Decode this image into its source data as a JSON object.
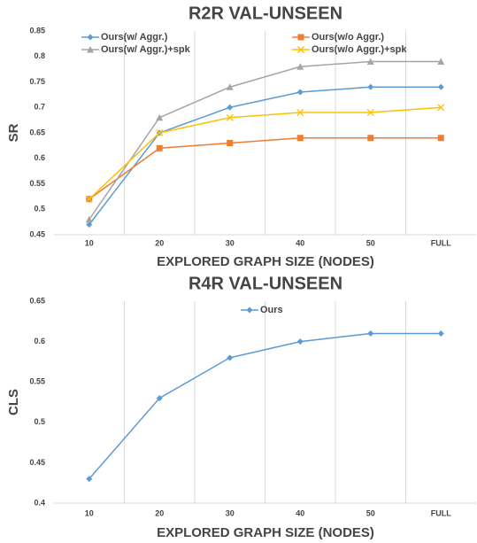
{
  "chart_data": [
    {
      "type": "line",
      "title": "R2R VAL-UNSEEN",
      "x_label": "EXPLORED GRAPH SIZE (NODES)",
      "y_label": "SR",
      "categories": [
        "10",
        "20",
        "30",
        "40",
        "50",
        "FULL"
      ],
      "series": [
        {
          "name": "Ours(w/ Aggr.)",
          "color": "#5b9bd5",
          "marker": "diamond",
          "values": [
            0.47,
            0.65,
            0.7,
            0.73,
            0.74,
            0.74
          ]
        },
        {
          "name": "Ours(w/o Aggr.)",
          "color": "#ed7d31",
          "marker": "square",
          "values": [
            0.52,
            0.62,
            0.63,
            0.64,
            0.64,
            0.64
          ]
        },
        {
          "name": "Ours(w/ Aggr.)+spk",
          "color": "#a5a5a5",
          "marker": "triangle",
          "values": [
            0.48,
            0.68,
            0.74,
            0.78,
            0.79,
            0.79
          ]
        },
        {
          "name": "Ours(w/o Aggr.)+spk",
          "color": "#ffc000",
          "marker": "x",
          "values": [
            0.52,
            0.65,
            0.68,
            0.69,
            0.69,
            0.7
          ]
        }
      ],
      "ylim": [
        0.45,
        0.85
      ],
      "yticks": [
        0.45,
        0.5,
        0.55,
        0.6,
        0.65,
        0.7,
        0.75,
        0.8,
        0.85
      ],
      "legend": "top"
    },
    {
      "type": "line",
      "title": "R4R VAL-UNSEEN",
      "x_label": "EXPLORED GRAPH SIZE (NODES)",
      "y_label": "CLS",
      "categories": [
        "10",
        "20",
        "30",
        "40",
        "50",
        "FULL"
      ],
      "series": [
        {
          "name": "Ours",
          "color": "#5b9bd5",
          "marker": "diamond",
          "values": [
            0.43,
            0.53,
            0.58,
            0.6,
            0.61,
            0.61
          ]
        }
      ],
      "ylim": [
        0.4,
        0.65
      ],
      "yticks": [
        0.4,
        0.45,
        0.5,
        0.55,
        0.6,
        0.65
      ],
      "legend": "top"
    }
  ]
}
